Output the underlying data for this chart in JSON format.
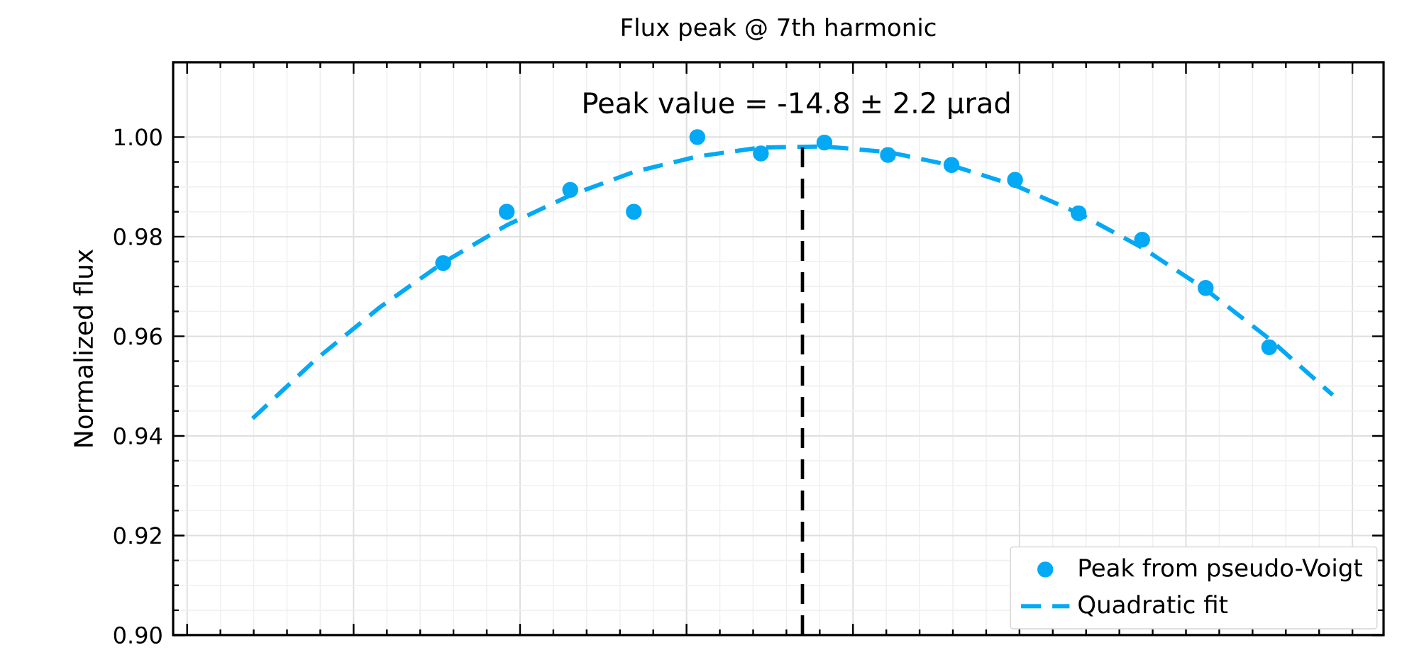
{
  "chart_data": {
    "type": "scatter",
    "title": "Flux peak @ 7th harmonic",
    "ylabel": "Normalized flux",
    "annotations": [
      "Peak value = -14.8 ± 2.2 μrad"
    ],
    "categories": [
      null,
      null,
      null,
      null,
      null,
      null,
      null,
      null,
      null,
      null,
      null,
      null,
      null,
      null,
      null,
      null,
      null,
      null
    ],
    "series": [
      {
        "name": "Peak from pseudo-Voigt",
        "color": "#03a9f4",
        "marker": "circle",
        "values": [
          null,
          null,
          null,
          0.9747,
          0.985,
          0.9894,
          0.985,
          1.0,
          0.9967,
          0.9989,
          0.9964,
          0.9944,
          0.9914,
          0.9847,
          0.9794,
          0.9697,
          0.9578,
          null
        ]
      },
      {
        "name": "Quadratic fit",
        "type": "line",
        "color": "#03a9f4",
        "line_style": "dashed",
        "marker": "none",
        "values": [
          0.9435,
          0.9554,
          0.9658,
          0.9748,
          0.9823,
          0.9883,
          0.993,
          0.9961,
          0.9979,
          0.9981,
          0.997,
          0.9943,
          0.9903,
          0.9847,
          0.9778,
          0.9694,
          0.9595,
          0.9482
        ]
      }
    ],
    "ylim": [
      0.9,
      1.015
    ],
    "yticks": [
      {
        "value": 0.9,
        "label": "0.90"
      },
      {
        "value": 0.92,
        "label": "0.92"
      },
      {
        "value": 0.94,
        "label": "0.94"
      },
      {
        "value": 0.96,
        "label": "0.96"
      },
      {
        "value": 0.98,
        "label": "0.98"
      },
      {
        "value": 1.0,
        "label": "1.00"
      }
    ],
    "tick_labels": "y",
    "grid": true,
    "legend": "bottom right"
  }
}
